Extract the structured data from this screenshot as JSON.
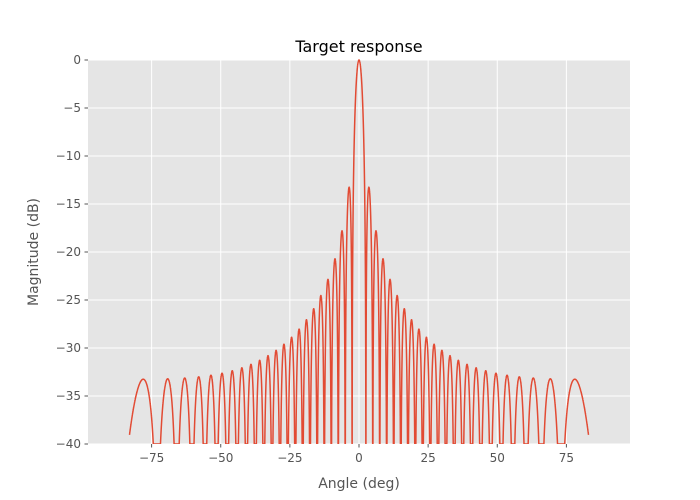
{
  "chart_data": {
    "type": "line",
    "title": "Target response",
    "xlabel": "Angle (deg)",
    "ylabel": "Magnitude (dB)",
    "xlim": [
      -98,
      98
    ],
    "ylim": [
      -40,
      0
    ],
    "xticks": [
      -75,
      -50,
      -25,
      0,
      25,
      50,
      75
    ],
    "xtick_labels": [
      "−75",
      "−50",
      "−25",
      "0",
      "25",
      "50",
      "75"
    ],
    "yticks": [
      0,
      -5,
      -10,
      -15,
      -20,
      -25,
      -30,
      -35,
      -40
    ],
    "ytick_labels": [
      "0",
      "−5",
      "−10",
      "−15",
      "−20",
      "−25",
      "−30",
      "−35",
      "−40"
    ],
    "grid": true,
    "series": [
      {
        "color": "#E24A33",
        "description": "Sinc-like array response: main lobe 0 dB at 0 deg, peak sidelobes about -13.5 dB near +/-2 deg, decaying to about -36 dB near +/-80 deg, response clipped to -40 dB between about -83 and 83 deg",
        "x_range": [
          -83,
          83
        ]
      }
    ]
  }
}
